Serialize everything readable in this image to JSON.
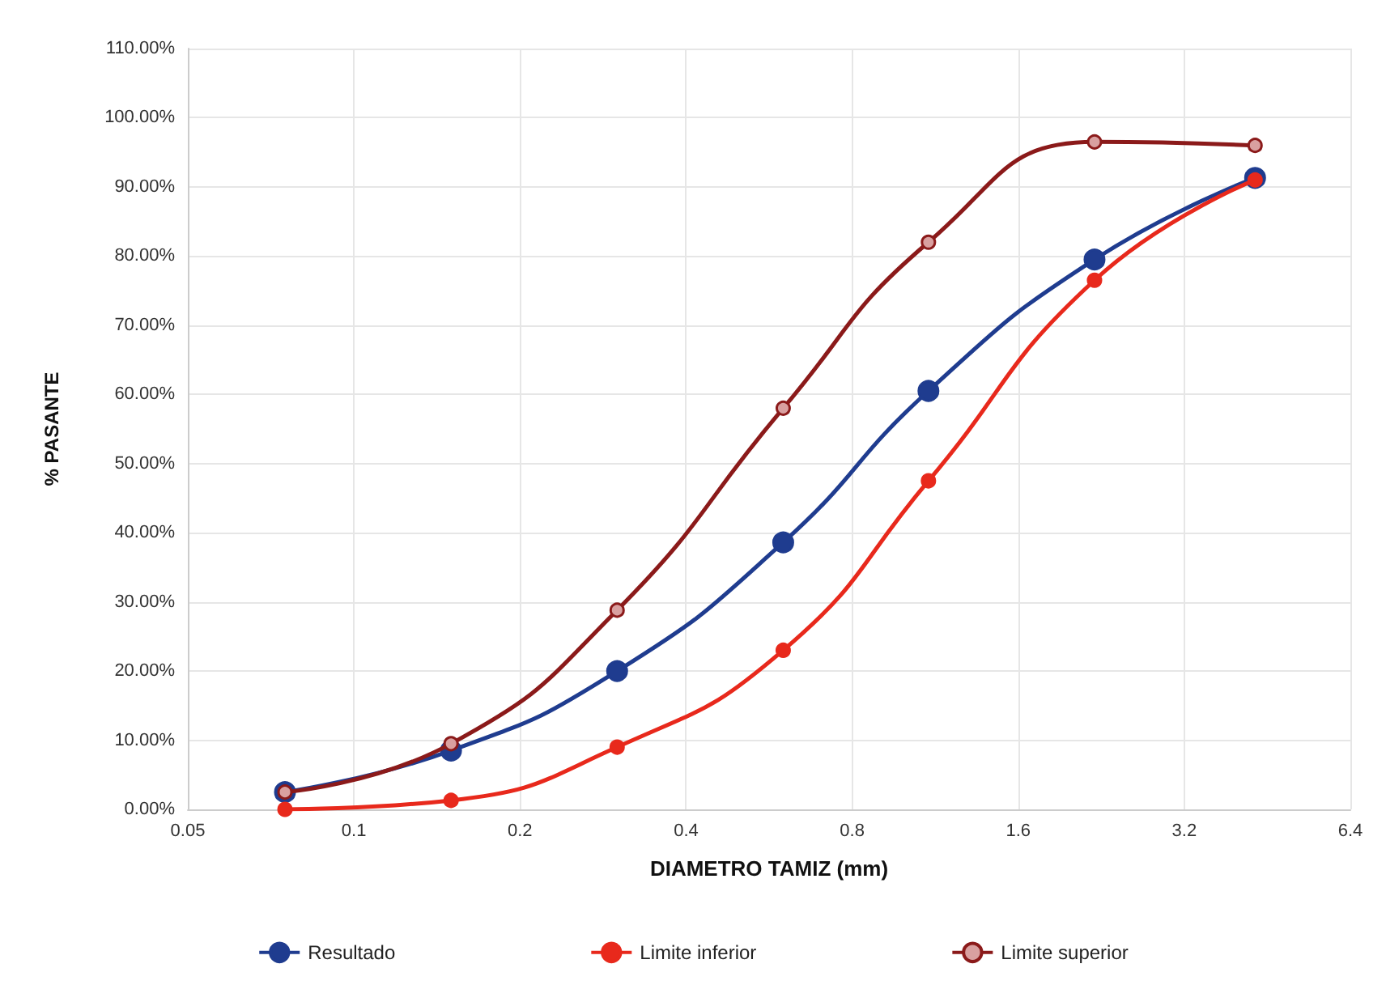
{
  "chart_data": {
    "type": "line",
    "xlabel": "DIAMETRO TAMIZ (mm)",
    "ylabel": "% PASANTE",
    "log": "x",
    "x": [
      0.075,
      0.15,
      0.3,
      0.6,
      1.1,
      2.2,
      4.3
    ],
    "series": [
      {
        "name": "Resultado",
        "color": "#1f3c8f",
        "values": [
          2.5,
          8.5,
          20,
          38.6,
          60.5,
          79.5,
          91.3
        ]
      },
      {
        "name": "Limite inferior",
        "color": "#e8291c",
        "values": [
          0,
          1.3,
          9,
          23,
          47.5,
          76.5,
          91
        ]
      },
      {
        "name": "Limite superior",
        "color": "#8b1a1a",
        "values": [
          2.5,
          9.5,
          28.8,
          58,
          82,
          96.5,
          96
        ]
      }
    ],
    "xlim": [
      0.05,
      6.4
    ],
    "xticks": [
      0.05,
      0.1,
      0.2,
      0.4,
      0.8,
      1.6,
      3.2,
      6.4
    ],
    "ylim": [
      0,
      110
    ],
    "yticks": [
      {
        "value": 0,
        "label": "0.00%"
      },
      {
        "value": 10,
        "label": "10.00%"
      },
      {
        "value": 20,
        "label": "20.00%"
      },
      {
        "value": 30,
        "label": "30.00%"
      },
      {
        "value": 40,
        "label": "40.00%"
      },
      {
        "value": 50,
        "label": "50.00%"
      },
      {
        "value": 60,
        "label": "60.00%"
      },
      {
        "value": 70,
        "label": "70.00%"
      },
      {
        "value": 80,
        "label": "80.00%"
      },
      {
        "value": 90,
        "label": "90.00%"
      },
      {
        "value": 100,
        "label": "100.00%"
      },
      {
        "value": 110,
        "label": "110.00%"
      }
    ],
    "grid": true,
    "legend": "bottom",
    "marker": "circle",
    "line_style": "solid"
  }
}
